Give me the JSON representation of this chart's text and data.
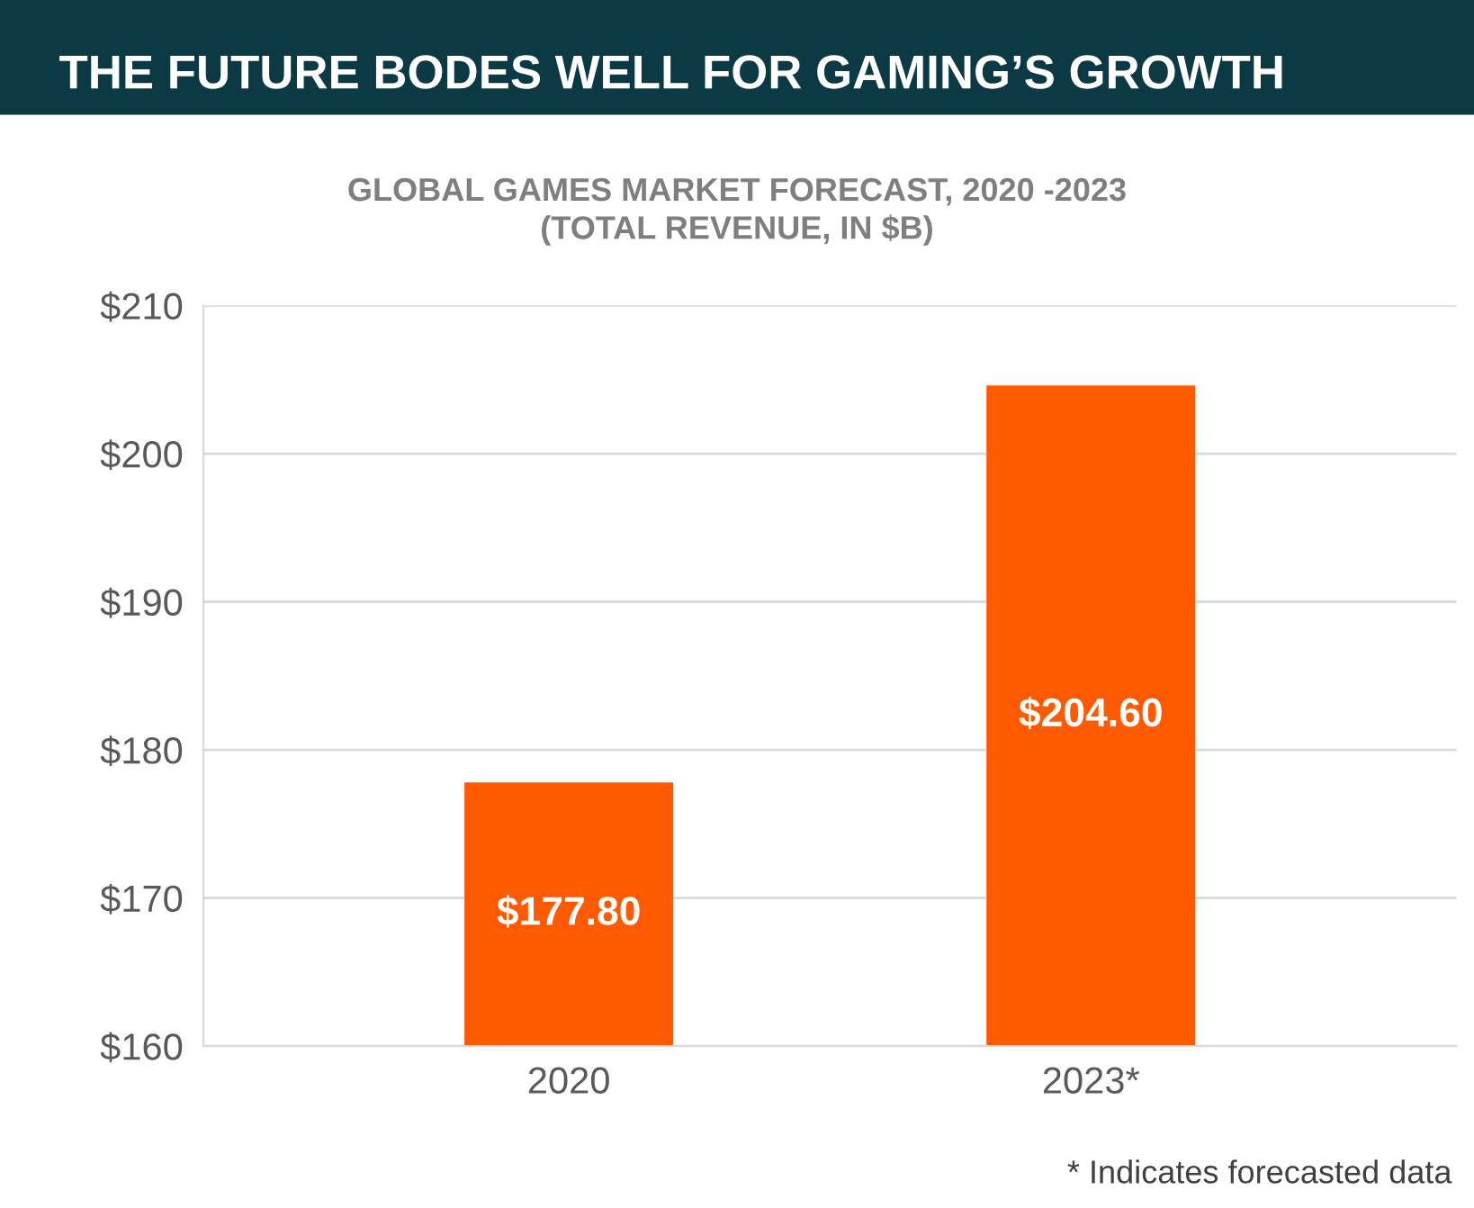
{
  "chart_data": {
    "type": "bar",
    "title": "THE FUTURE BODES WELL FOR GAMING’S GROWTH",
    "subtitle": "GLOBAL GAMES MARKET FORECAST, 2020 -2023\n(TOTAL REVENUE, IN $B)",
    "categories": [
      "2020",
      "2023*"
    ],
    "values": [
      177.8,
      204.6
    ],
    "value_labels": [
      "$177.80",
      "$204.60"
    ],
    "color": "#ff5a00",
    "ylim": [
      160,
      210
    ],
    "yticks": [
      {
        "value": 160,
        "label": "$160"
      },
      {
        "value": 170,
        "label": "$170"
      },
      {
        "value": 180,
        "label": "$180"
      },
      {
        "value": 190,
        "label": "$190"
      },
      {
        "value": 200,
        "label": "$200"
      },
      {
        "value": 210,
        "label": "$210"
      }
    ],
    "grid": "y",
    "annotations": [
      "* Indicates forecasted data"
    ]
  }
}
